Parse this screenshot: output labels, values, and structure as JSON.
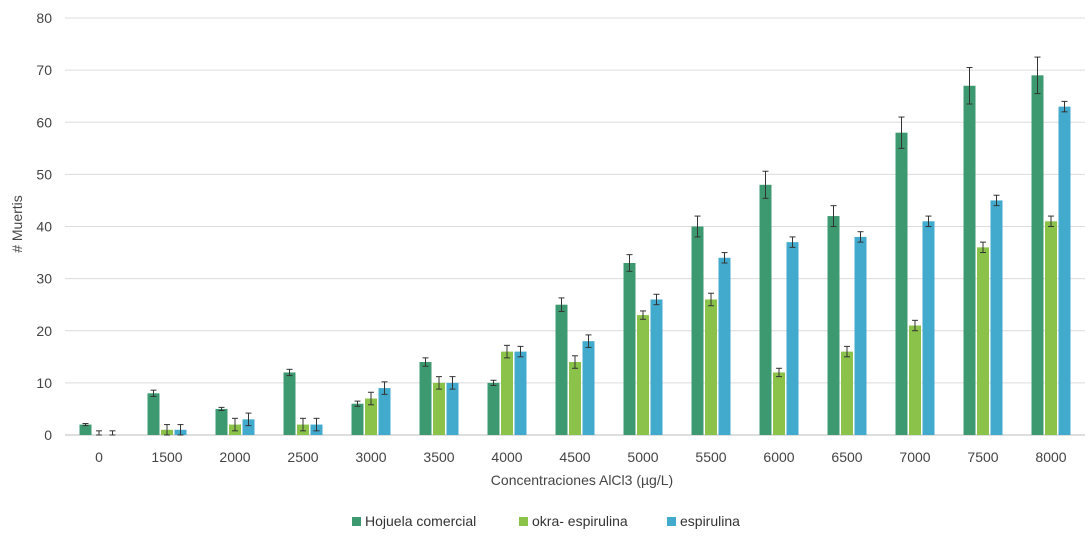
{
  "chart_data": {
    "type": "bar",
    "title": "",
    "xlabel": "Concentraciones AlCl3 (µg/L)",
    "ylabel": "# Muertis",
    "ylim": [
      0,
      80
    ],
    "yticks": [
      0,
      10,
      20,
      30,
      40,
      50,
      60,
      70,
      80
    ],
    "grid": true,
    "legend_position": "bottom",
    "categories": [
      "0",
      "1500",
      "2000",
      "2500",
      "3000",
      "3500",
      "4000",
      "4500",
      "5000",
      "5500",
      "6000",
      "6500",
      "7000",
      "7500",
      "8000"
    ],
    "series": [
      {
        "name": "Hojuela comercial",
        "color": "#3d9970",
        "values": [
          2,
          8,
          5,
          12,
          6,
          14,
          10,
          25,
          33,
          40,
          48,
          42,
          58,
          67,
          69
        ],
        "errors": [
          0.2,
          0.6,
          0.3,
          0.6,
          0.5,
          0.8,
          0.5,
          1.3,
          1.6,
          2.0,
          2.6,
          2.0,
          3.0,
          3.5,
          3.5
        ]
      },
      {
        "name": "okra- espirulina",
        "color": "#8bc34a",
        "values": [
          0,
          1,
          2,
          2,
          7,
          10,
          16,
          14,
          23,
          26,
          12,
          16,
          21,
          36,
          41
        ],
        "errors": [
          0.8,
          1.0,
          1.2,
          1.2,
          1.2,
          1.2,
          1.2,
          1.2,
          0.8,
          1.2,
          0.8,
          1.0,
          1.0,
          1.0,
          1.0
        ]
      },
      {
        "name": "espirulina",
        "color": "#42aacc",
        "values": [
          0,
          1,
          3,
          2,
          9,
          10,
          16,
          18,
          26,
          34,
          37,
          38,
          41,
          45,
          63
        ],
        "errors": [
          0.8,
          1.0,
          1.2,
          1.2,
          1.2,
          1.2,
          1.0,
          1.2,
          1.0,
          1.0,
          1.0,
          1.0,
          1.0,
          1.0,
          1.0
        ]
      }
    ]
  }
}
